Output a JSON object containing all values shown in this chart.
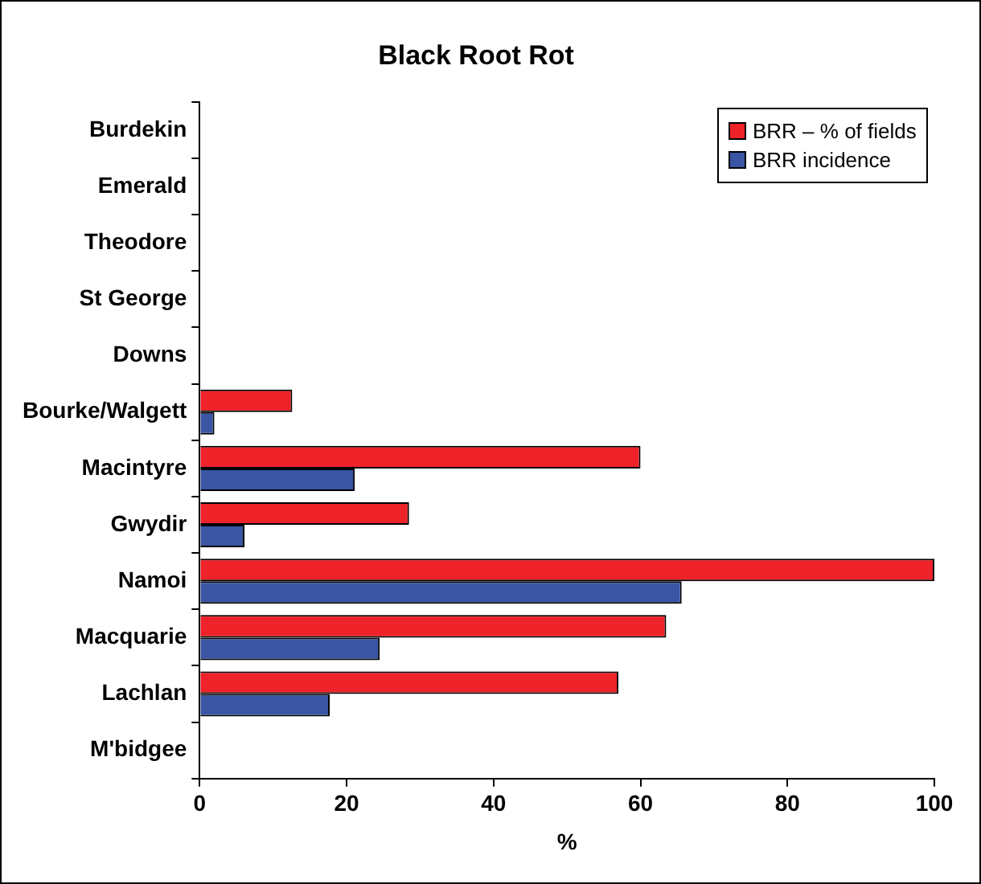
{
  "chart_data": {
    "type": "bar",
    "orientation": "horizontal",
    "title": "Black Root Rot",
    "xlabel": "%",
    "categories": [
      "Burdekin",
      "Emerald",
      "Theodore",
      "St George",
      "Downs",
      "Bourke/Walgett",
      "Macintyre",
      "Gwydir",
      "Namoi",
      "Macquarie",
      "Lachlan",
      "M'bidgee"
    ],
    "series": [
      {
        "name": "BRR – % of fields",
        "color": "#ee2229",
        "values": [
          null,
          null,
          null,
          null,
          null,
          12.6,
          60,
          28.5,
          100,
          63.5,
          57,
          null
        ]
      },
      {
        "name": "BRR incidence",
        "color": "#3a55a4",
        "values": [
          null,
          null,
          null,
          null,
          null,
          2,
          21.1,
          6.1,
          65.6,
          24.5,
          17.7,
          null
        ]
      }
    ],
    "xlim": [
      0,
      100
    ],
    "xticks": [
      0,
      20,
      40,
      60,
      80,
      100
    ],
    "grid": false,
    "legend": "top right"
  }
}
